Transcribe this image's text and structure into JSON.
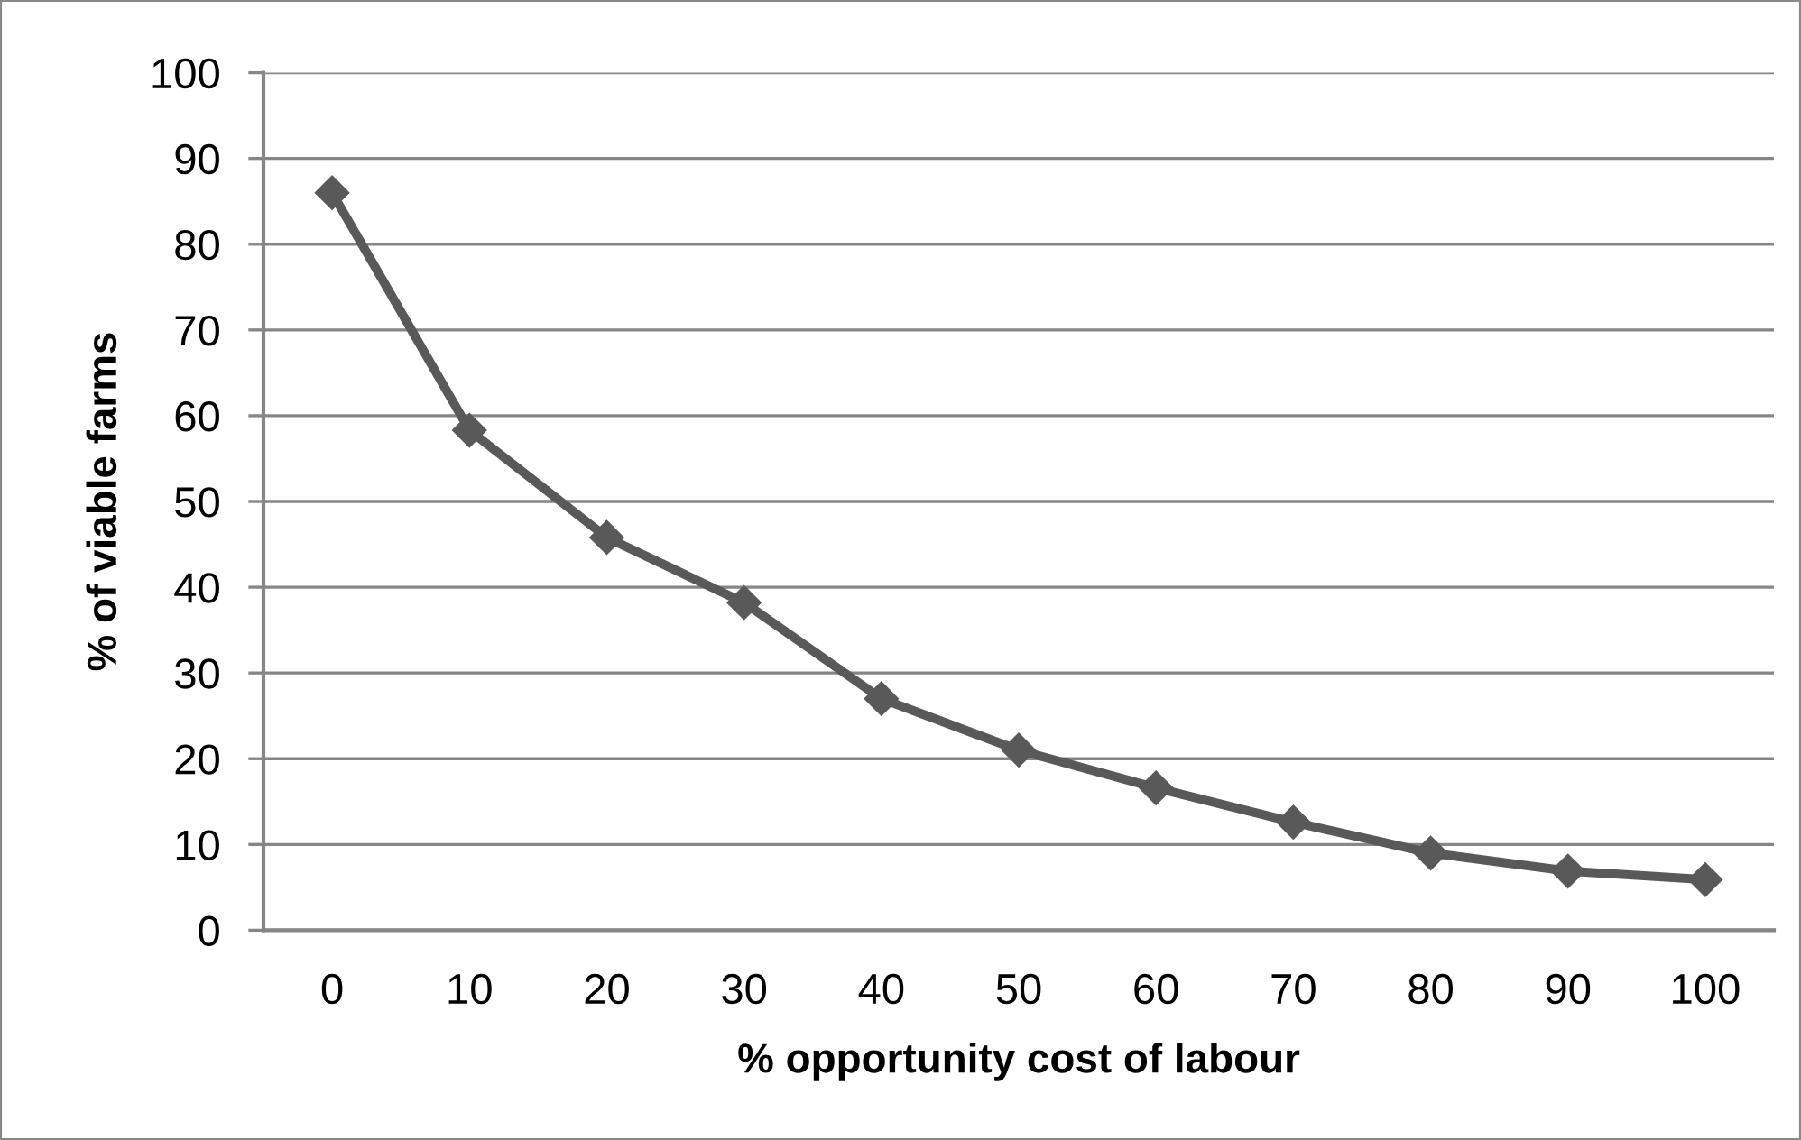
{
  "chart_data": {
    "type": "line",
    "xlabel": "% opportunity cost of labour",
    "ylabel": "% of viable farms",
    "categories": [
      "0",
      "10",
      "20",
      "30",
      "40",
      "50",
      "60",
      "70",
      "80",
      "90",
      "100"
    ],
    "series": [
      {
        "color": "#595959",
        "values": [
          86,
          58.3,
          45.8,
          38.2,
          27,
          21,
          16.6,
          12.6,
          9,
          6.9,
          5.9
        ]
      }
    ],
    "ylim": [
      0,
      100
    ],
    "yticks": [
      0,
      10,
      20,
      30,
      40,
      50,
      60,
      70,
      80,
      90,
      100
    ],
    "grid": "y",
    "marker": "diamond",
    "line_style": "solid"
  }
}
